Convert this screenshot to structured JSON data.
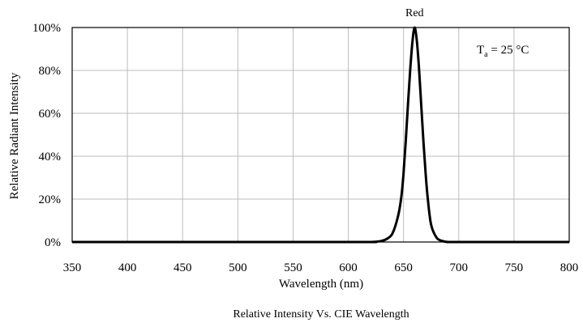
{
  "chart_data": {
    "type": "line",
    "title": "",
    "caption": "Relative Intensity Vs. CIE Wavelength",
    "xlabel": "Wavelength (nm)",
    "ylabel": "Relative Radiant Intensity",
    "xlim": [
      350,
      800
    ],
    "ylim": [
      0,
      100
    ],
    "x_ticks": [
      350,
      400,
      450,
      500,
      550,
      600,
      650,
      700,
      750,
      800
    ],
    "y_ticks": [
      0,
      20,
      40,
      60,
      80,
      100
    ],
    "y_tick_labels": [
      "0%",
      "20%",
      "40%",
      "60%",
      "80%",
      "100%"
    ],
    "grid": true,
    "annotation": {
      "base": "T",
      "subscript": "a",
      "rest": " = 25 °C"
    },
    "series": [
      {
        "name": "Red",
        "x": [
          350,
          600,
          620,
          630,
          635,
          640,
          645,
          648,
          650,
          652,
          654,
          656,
          658,
          660,
          662,
          664,
          666,
          668,
          670,
          672,
          675,
          680,
          685,
          690,
          700,
          800
        ],
        "y": [
          0,
          0,
          0,
          0.5,
          1.5,
          4,
          12,
          21,
          32,
          47,
          64,
          80,
          93,
          100,
          94,
          81,
          64,
          47,
          32,
          20,
          8,
          2,
          0.5,
          0,
          0,
          0
        ]
      }
    ]
  }
}
